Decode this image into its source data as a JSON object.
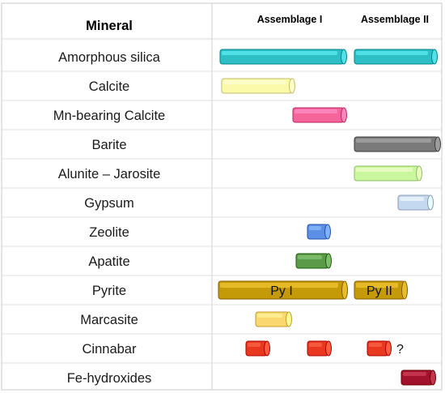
{
  "table": {
    "header": {
      "mineral": "Mineral",
      "assemblage_1": "Assemblage I",
      "assemblage_2": "Assemblage II"
    },
    "rows": [
      {
        "mineral": "Amorphous silica",
        "bars": [
          {
            "phase": "Assemblage I",
            "color": "#2ebfc6"
          },
          {
            "phase": "Assemblage II",
            "color": "#2ebfc6"
          }
        ]
      },
      {
        "mineral": "Calcite",
        "bars": [
          {
            "phase": "Assemblage I",
            "color": "#fbfaa8"
          }
        ]
      },
      {
        "mineral": "Mn-bearing Calcite",
        "bars": [
          {
            "phase": "Assemblage I",
            "color": "#f5649a"
          }
        ]
      },
      {
        "mineral": "Barite",
        "bars": [
          {
            "phase": "Assemblage II",
            "color": "#7a7a7a"
          }
        ]
      },
      {
        "mineral": "Alunite – Jarosite",
        "bars": [
          {
            "phase": "Assemblage II",
            "color": "#c9f79e"
          }
        ]
      },
      {
        "mineral": "Gypsum",
        "bars": [
          {
            "phase": "Assemblage II",
            "color": "#c4d9ef"
          }
        ]
      },
      {
        "mineral": "Zeolite",
        "bars": [
          {
            "phase": "Assemblage I",
            "color": "#5d8fe6"
          }
        ]
      },
      {
        "mineral": "Apatite",
        "bars": [
          {
            "phase": "Assemblage I",
            "color": "#5a9a48"
          }
        ]
      },
      {
        "mineral": "Pyrite",
        "bars": [
          {
            "phase": "Assemblage I",
            "label": "Py I",
            "color": "#c49a08"
          },
          {
            "phase": "Assemblage II",
            "label": "Py II",
            "color": "#c49a08"
          }
        ]
      },
      {
        "mineral": "Marcasite",
        "bars": [
          {
            "phase": "Assemblage I",
            "color": "#fbd86e"
          }
        ]
      },
      {
        "mineral": "Cinnabar",
        "bars": [
          {
            "phase": "Assemblage I",
            "color": "#e8391e"
          },
          {
            "phase": "Assemblage I",
            "color": "#e8391e"
          },
          {
            "phase": "Assemblage II",
            "color": "#e8391e"
          }
        ],
        "note": "?"
      },
      {
        "mineral": "Fe-hydroxides",
        "bars": [
          {
            "phase": "Assemblage II",
            "color": "#a3122c"
          }
        ]
      }
    ]
  }
}
